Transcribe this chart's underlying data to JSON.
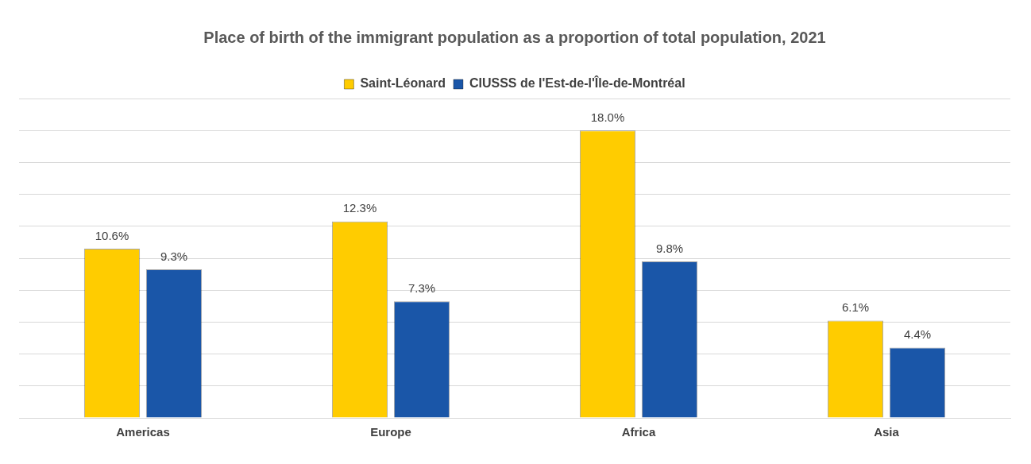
{
  "chart_data": {
    "type": "bar",
    "title": "Place of birth of the immigrant population as a proportion of total population, 2021",
    "categories": [
      "Americas",
      "Europe",
      "Africa",
      "Asia"
    ],
    "series": [
      {
        "name": "Saint-Léonard",
        "color": "#ffcc00",
        "values": [
          10.6,
          12.3,
          18.0,
          6.1
        ],
        "value_labels": [
          "10.6%",
          "12.3%",
          "18.0%",
          "6.1%"
        ]
      },
      {
        "name": "CIUSSS de l'Est-de-l'Île-de-Montréal",
        "color": "#1a56a8",
        "values": [
          9.3,
          7.3,
          9.8,
          4.4
        ],
        "value_labels": [
          "9.3%",
          "7.3%",
          "9.8%",
          "4.4%"
        ]
      }
    ],
    "ylim": [
      0,
      20
    ],
    "yticks": [
      {
        "value": 0,
        "label": null
      },
      {
        "value": 2,
        "label": null
      },
      {
        "value": 4,
        "label": null
      },
      {
        "value": 6,
        "label": null
      },
      {
        "value": 8,
        "label": null
      },
      {
        "value": 10,
        "label": null
      },
      {
        "value": 12,
        "label": null
      },
      {
        "value": 14,
        "label": null
      },
      {
        "value": 16,
        "label": null
      },
      {
        "value": 18,
        "label": null
      },
      {
        "value": 20,
        "label": null
      }
    ],
    "tick_labels": "x",
    "grid": "y",
    "legend": "top"
  }
}
